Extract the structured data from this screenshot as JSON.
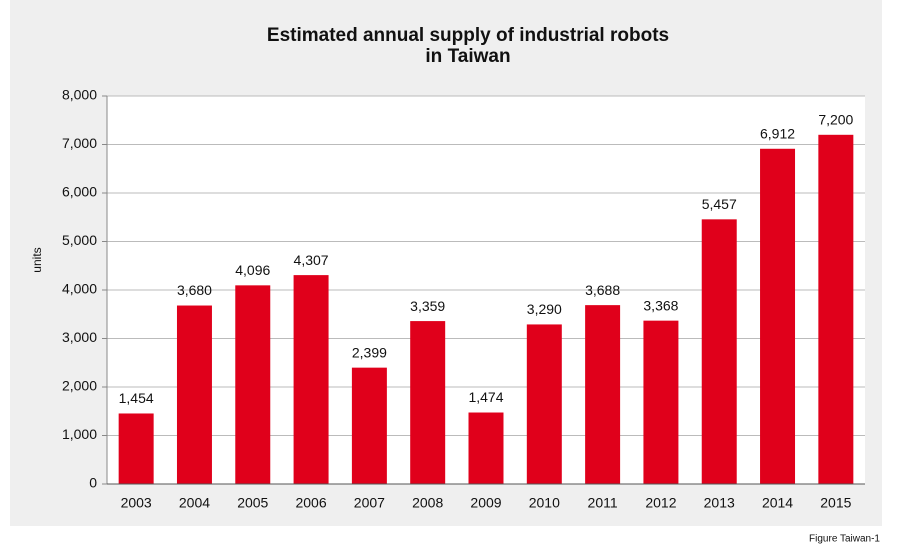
{
  "chart_data": {
    "type": "bar",
    "title": [
      "Estimated annual supply of industrial robots",
      "in Taiwan"
    ],
    "y_label": "units",
    "categories": [
      "2003",
      "2004",
      "2005",
      "2006",
      "2007",
      "2008",
      "2009",
      "2010",
      "2011",
      "2012",
      "2013",
      "2014",
      "2015"
    ],
    "values": [
      1454,
      3680,
      4096,
      4307,
      2399,
      3359,
      1474,
      3290,
      3688,
      3368,
      5457,
      6912,
      7200
    ],
    "value_labels": [
      "1,454",
      "3,680",
      "4,096",
      "4,307",
      "2,399",
      "3,359",
      "1,474",
      "3,290",
      "3,688",
      "3,368",
      "5,457",
      "6,912",
      "7,200"
    ],
    "color": "#e0001b",
    "ylim": [
      0,
      8000
    ],
    "yticks": [
      0,
      {
        "value": 1000,
        "label": "1,000"
      },
      {
        "value": 2000,
        "label": "2,000"
      },
      {
        "value": 3000,
        "label": "3,000"
      },
      {
        "value": 4000,
        "label": "4,000"
      },
      {
        "value": 5000,
        "label": "5,000"
      },
      {
        "value": 6000,
        "label": "6,000"
      },
      {
        "value": 7000,
        "label": "7,000"
      },
      {
        "value": 8000,
        "label": "8,000"
      }
    ],
    "grid": true,
    "note": "Figure Taiwan-1"
  }
}
